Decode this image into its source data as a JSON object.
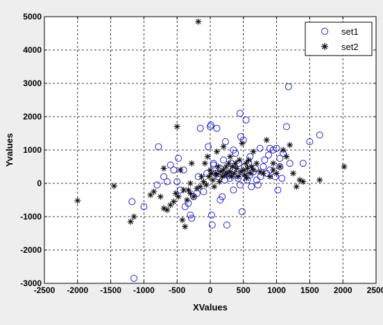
{
  "chart_data": {
    "type": "scatter",
    "xlabel": "XValues",
    "ylabel": "Yvalues",
    "xlim": [
      -2500,
      2500
    ],
    "ylim": [
      -3000,
      5000
    ],
    "xticks": [
      -2500,
      -2000,
      -1500,
      -1000,
      -500,
      0,
      500,
      1000,
      1500,
      2000,
      2500
    ],
    "yticks": [
      -3000,
      -2000,
      -1000,
      0,
      1000,
      2000,
      3000,
      4000,
      5000
    ],
    "grid": true,
    "legend_position": "top-right",
    "colors": {
      "set1": "#2222dd",
      "set2": "#111111",
      "background": "#eeeeee",
      "plot_area": "#ffffff"
    },
    "series": [
      {
        "name": "set1",
        "marker": "circle",
        "points": [
          [
            -1150,
            -2850
          ],
          [
            -1180,
            -550
          ],
          [
            -1000,
            -700
          ],
          [
            -800,
            -50
          ],
          [
            -780,
            1100
          ],
          [
            -700,
            200
          ],
          [
            -650,
            50
          ],
          [
            -550,
            400
          ],
          [
            -500,
            50
          ],
          [
            -480,
            750
          ],
          [
            -450,
            -200
          ],
          [
            -400,
            400
          ],
          [
            -380,
            -700
          ],
          [
            -330,
            -600
          ],
          [
            -300,
            -950
          ],
          [
            -280,
            -1050
          ],
          [
            -250,
            -400
          ],
          [
            -200,
            -300
          ],
          [
            -180,
            200
          ],
          [
            -150,
            1650
          ],
          [
            -100,
            -250
          ],
          [
            -50,
            300
          ],
          [
            -30,
            1100
          ],
          [
            0,
            1700
          ],
          [
            10,
            1750
          ],
          [
            20,
            -950
          ],
          [
            30,
            -1250
          ],
          [
            50,
            600
          ],
          [
            80,
            300
          ],
          [
            100,
            1650
          ],
          [
            120,
            200
          ],
          [
            150,
            450
          ],
          [
            180,
            -400
          ],
          [
            200,
            700
          ],
          [
            220,
            100
          ],
          [
            230,
            1250
          ],
          [
            250,
            -1250
          ],
          [
            260,
            250
          ],
          [
            280,
            300
          ],
          [
            300,
            150
          ],
          [
            320,
            600
          ],
          [
            340,
            400
          ],
          [
            350,
            -200
          ],
          [
            380,
            900
          ],
          [
            400,
            250
          ],
          [
            420,
            150
          ],
          [
            430,
            600
          ],
          [
            450,
            2100
          ],
          [
            460,
            1400
          ],
          [
            480,
            -850
          ],
          [
            500,
            1300
          ],
          [
            510,
            300
          ],
          [
            520,
            500
          ],
          [
            540,
            1900
          ],
          [
            560,
            100
          ],
          [
            580,
            600
          ],
          [
            600,
            800
          ],
          [
            620,
            -100
          ],
          [
            650,
            350
          ],
          [
            680,
            450
          ],
          [
            700,
            100
          ],
          [
            720,
            -50
          ],
          [
            750,
            1050
          ],
          [
            760,
            200
          ],
          [
            800,
            500
          ],
          [
            820,
            700
          ],
          [
            850,
            300
          ],
          [
            880,
            850
          ],
          [
            900,
            400
          ],
          [
            950,
            1000
          ],
          [
            980,
            200
          ],
          [
            1000,
            1050
          ],
          [
            1020,
            -200
          ],
          [
            1050,
            500
          ],
          [
            1080,
            150
          ],
          [
            1100,
            900
          ],
          [
            1150,
            1700
          ],
          [
            1180,
            2900
          ],
          [
            1200,
            600
          ],
          [
            1400,
            600
          ],
          [
            1500,
            1250
          ],
          [
            1650,
            1450
          ],
          [
            150,
            -500
          ],
          [
            -600,
            550
          ],
          [
            350,
            1000
          ],
          [
            450,
            -50
          ],
          [
            600,
            250
          ],
          [
            900,
            1050
          ],
          [
            1050,
            750
          ],
          [
            50,
            550
          ]
        ]
      },
      {
        "name": "set2",
        "marker": "star",
        "points": [
          [
            -2000,
            -520
          ],
          [
            -1450,
            -80
          ],
          [
            -1200,
            -1150
          ],
          [
            -1150,
            -1000
          ],
          [
            -900,
            -350
          ],
          [
            -850,
            -250
          ],
          [
            -750,
            -400
          ],
          [
            -700,
            -750
          ],
          [
            -650,
            -800
          ],
          [
            -600,
            -650
          ],
          [
            -550,
            -550
          ],
          [
            -520,
            -300
          ],
          [
            -500,
            1700
          ],
          [
            -480,
            -400
          ],
          [
            -450,
            400
          ],
          [
            -420,
            -1100
          ],
          [
            -400,
            -200
          ],
          [
            -380,
            -1300
          ],
          [
            -350,
            -500
          ],
          [
            -330,
            -200
          ],
          [
            -300,
            -300
          ],
          [
            -280,
            600
          ],
          [
            -250,
            -400
          ],
          [
            -200,
            -150
          ],
          [
            -180,
            4850
          ],
          [
            -150,
            -100
          ],
          [
            -130,
            200
          ],
          [
            -100,
            50
          ],
          [
            -80,
            600
          ],
          [
            -60,
            -50
          ],
          [
            -40,
            800
          ],
          [
            -20,
            200
          ],
          [
            0,
            400
          ],
          [
            20,
            300
          ],
          [
            40,
            100
          ],
          [
            60,
            -100
          ],
          [
            80,
            300
          ],
          [
            100,
            250
          ],
          [
            120,
            500
          ],
          [
            140,
            50
          ],
          [
            160,
            350
          ],
          [
            180,
            200
          ],
          [
            200,
            400
          ],
          [
            220,
            250
          ],
          [
            240,
            500
          ],
          [
            260,
            300
          ],
          [
            280,
            600
          ],
          [
            300,
            350
          ],
          [
            320,
            200
          ],
          [
            340,
            500
          ],
          [
            360,
            300
          ],
          [
            380,
            600
          ],
          [
            400,
            450
          ],
          [
            420,
            200
          ],
          [
            440,
            700
          ],
          [
            460,
            350
          ],
          [
            480,
            1200
          ],
          [
            500,
            400
          ],
          [
            520,
            250
          ],
          [
            540,
            600
          ],
          [
            560,
            450
          ],
          [
            580,
            700
          ],
          [
            600,
            300
          ],
          [
            620,
            500
          ],
          [
            650,
            400
          ],
          [
            700,
            600
          ],
          [
            750,
            350
          ],
          [
            800,
            300
          ],
          [
            850,
            1300
          ],
          [
            900,
            200
          ],
          [
            950,
            400
          ],
          [
            1000,
            300
          ],
          [
            1050,
            500
          ],
          [
            1100,
            1000
          ],
          [
            1150,
            800
          ],
          [
            1200,
            1150
          ],
          [
            1250,
            300
          ],
          [
            1300,
            -100
          ],
          [
            1350,
            100
          ],
          [
            1400,
            50
          ],
          [
            1650,
            100
          ],
          [
            2020,
            500
          ],
          [
            300,
            800
          ],
          [
            200,
            1100
          ],
          [
            -700,
            450
          ],
          [
            -300,
            0
          ],
          [
            100,
            950
          ],
          [
            550,
            150
          ],
          [
            650,
            950
          ],
          [
            950,
            600
          ]
        ]
      }
    ]
  }
}
